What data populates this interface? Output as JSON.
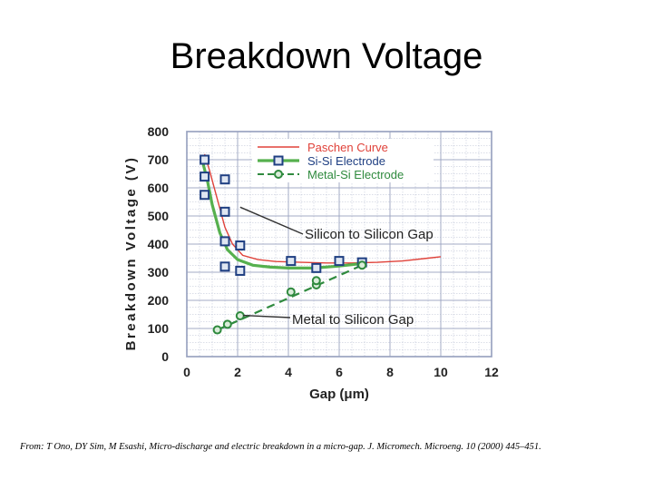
{
  "page": {
    "title": "Breakdown Voltage",
    "citation": "From: T Ono, DY Sim, M Esashi, Micro-discharge and electric breakdown in a micro-gap. J. Micromech. Microeng. 10 (2000) 445–451."
  },
  "colors": {
    "paschen": "#e0423a",
    "si_si": "#1f3f82",
    "metal_si": "#2f8a3e",
    "si_si_fit": "#56b04e",
    "grid": "#9aa3c0",
    "legend_paschen_text": "#e0423a",
    "legend_si_text": "#1f3f82",
    "legend_metal_text": "#2f8a3e"
  },
  "chart_data": {
    "type": "scatter",
    "xlabel": "Gap (μm)",
    "ylabel": "Breakdown Voltage (V)",
    "xlim": [
      0,
      12
    ],
    "ylim": [
      0,
      800
    ],
    "x_ticks": [
      0,
      2,
      4,
      6,
      8,
      10,
      12
    ],
    "y_ticks": [
      0,
      100,
      200,
      300,
      400,
      500,
      600,
      700,
      800
    ],
    "grid": true,
    "legend_position": "top-right",
    "series": [
      {
        "name": "Paschen Curve",
        "kind": "line",
        "x": [
          0.7,
          0.9,
          1.2,
          1.5,
          1.8,
          2.2,
          2.8,
          3.5,
          4.5,
          5.5,
          6.5,
          7.5,
          8.5,
          9.5,
          10.0
        ],
        "y": [
          720,
          660,
          560,
          460,
          400,
          360,
          345,
          338,
          335,
          333,
          333,
          335,
          340,
          350,
          355
        ]
      },
      {
        "name": "Si-Si Electrode",
        "kind": "points+fit",
        "x": [
          0.7,
          0.7,
          0.7,
          1.5,
          1.5,
          1.5,
          1.5,
          2.1,
          2.1,
          4.1,
          5.1,
          6.0,
          6.9
        ],
        "y": [
          700,
          640,
          575,
          630,
          515,
          410,
          320,
          395,
          305,
          340,
          315,
          340,
          335
        ],
        "fit_x": [
          0.6,
          0.8,
          1.0,
          1.3,
          1.6,
          2.0,
          2.6,
          3.3,
          4.0,
          5.0,
          6.0,
          7.0
        ],
        "fit_y": [
          700,
          630,
          540,
          440,
          380,
          345,
          325,
          318,
          315,
          315,
          322,
          332
        ]
      },
      {
        "name": "Metal-Si Electrode",
        "kind": "points+dashed-fit",
        "x": [
          1.2,
          1.6,
          2.1,
          4.1,
          5.1,
          5.1,
          6.9
        ],
        "y": [
          95,
          115,
          145,
          230,
          255,
          270,
          325
        ],
        "fit_x": [
          1.2,
          6.9
        ],
        "fit_y": [
          95,
          325
        ]
      }
    ],
    "annotations": [
      {
        "text": "Silicon to Silicon Gap",
        "point": [
          2.1,
          370
        ]
      },
      {
        "text": "Metal to Silicon Gap",
        "point": [
          2.0,
          140
        ]
      }
    ]
  }
}
